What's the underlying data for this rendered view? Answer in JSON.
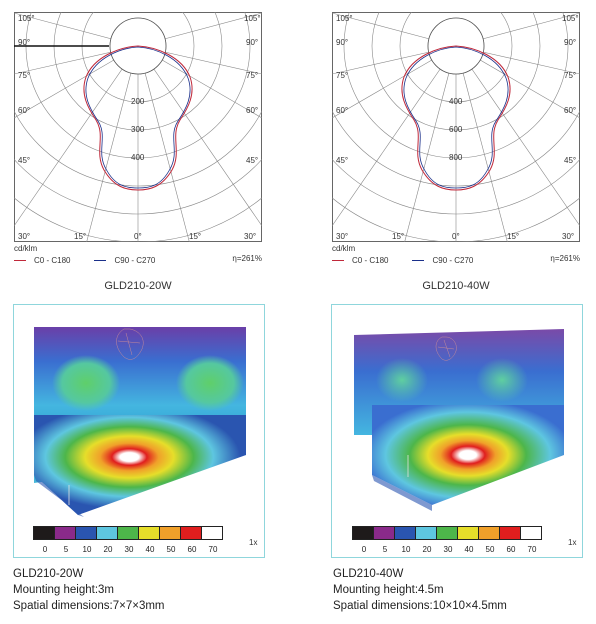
{
  "left": {
    "polar": {
      "angle_labels_top": [
        "105°",
        "90°",
        "75°",
        "60°",
        "45°"
      ],
      "angle_labels_bottom": [
        "30°",
        "15°",
        "0°",
        "15°",
        "30°"
      ],
      "radial_values": [
        "200",
        "300",
        "400"
      ]
    },
    "unit": "cd/klm",
    "legend": {
      "c0": "C0 - C180",
      "c90": "C90 - C270",
      "eta": "η=261%"
    },
    "caption": "GLD210-20W",
    "heatmap": {
      "scale_values": [
        "0",
        "5",
        "10",
        "20",
        "30",
        "40",
        "50",
        "60",
        "70"
      ],
      "zoom": "1x"
    },
    "spec": {
      "model": "GLD210-20W",
      "height": "Mounting height:3m",
      "dims": "Spatial dimensions:7×7×3mm"
    }
  },
  "right": {
    "polar": {
      "angle_labels_top": [
        "105°",
        "90°",
        "75°",
        "60°",
        "45°"
      ],
      "angle_labels_bottom": [
        "30°",
        "15°",
        "0°",
        "15°",
        "30°"
      ],
      "radial_values": [
        "400",
        "600",
        "800"
      ]
    },
    "unit": "cd/klm",
    "legend": {
      "c0": "C0 - C180",
      "c90": "C90 - C270",
      "eta": "η=261%"
    },
    "caption": "GLD210-40W",
    "heatmap": {
      "scale_values": [
        "0",
        "5",
        "10",
        "20",
        "30",
        "40",
        "50",
        "60",
        "70"
      ],
      "zoom": "1x"
    },
    "spec": {
      "model": "GLD210-40W",
      "height": "Mounting height:4.5m",
      "dims": "Spatial dimensions:10×10×4.5mm"
    }
  },
  "colors": {
    "c0_line": "#c0283a",
    "c90_line": "#1a2f8a",
    "scale": [
      "#1e1a1a",
      "#8a2a8a",
      "#2a55b0",
      "#5ec6e0",
      "#4db64a",
      "#e6de2a",
      "#f0a02a",
      "#e01e1e",
      "#ffffff"
    ]
  }
}
